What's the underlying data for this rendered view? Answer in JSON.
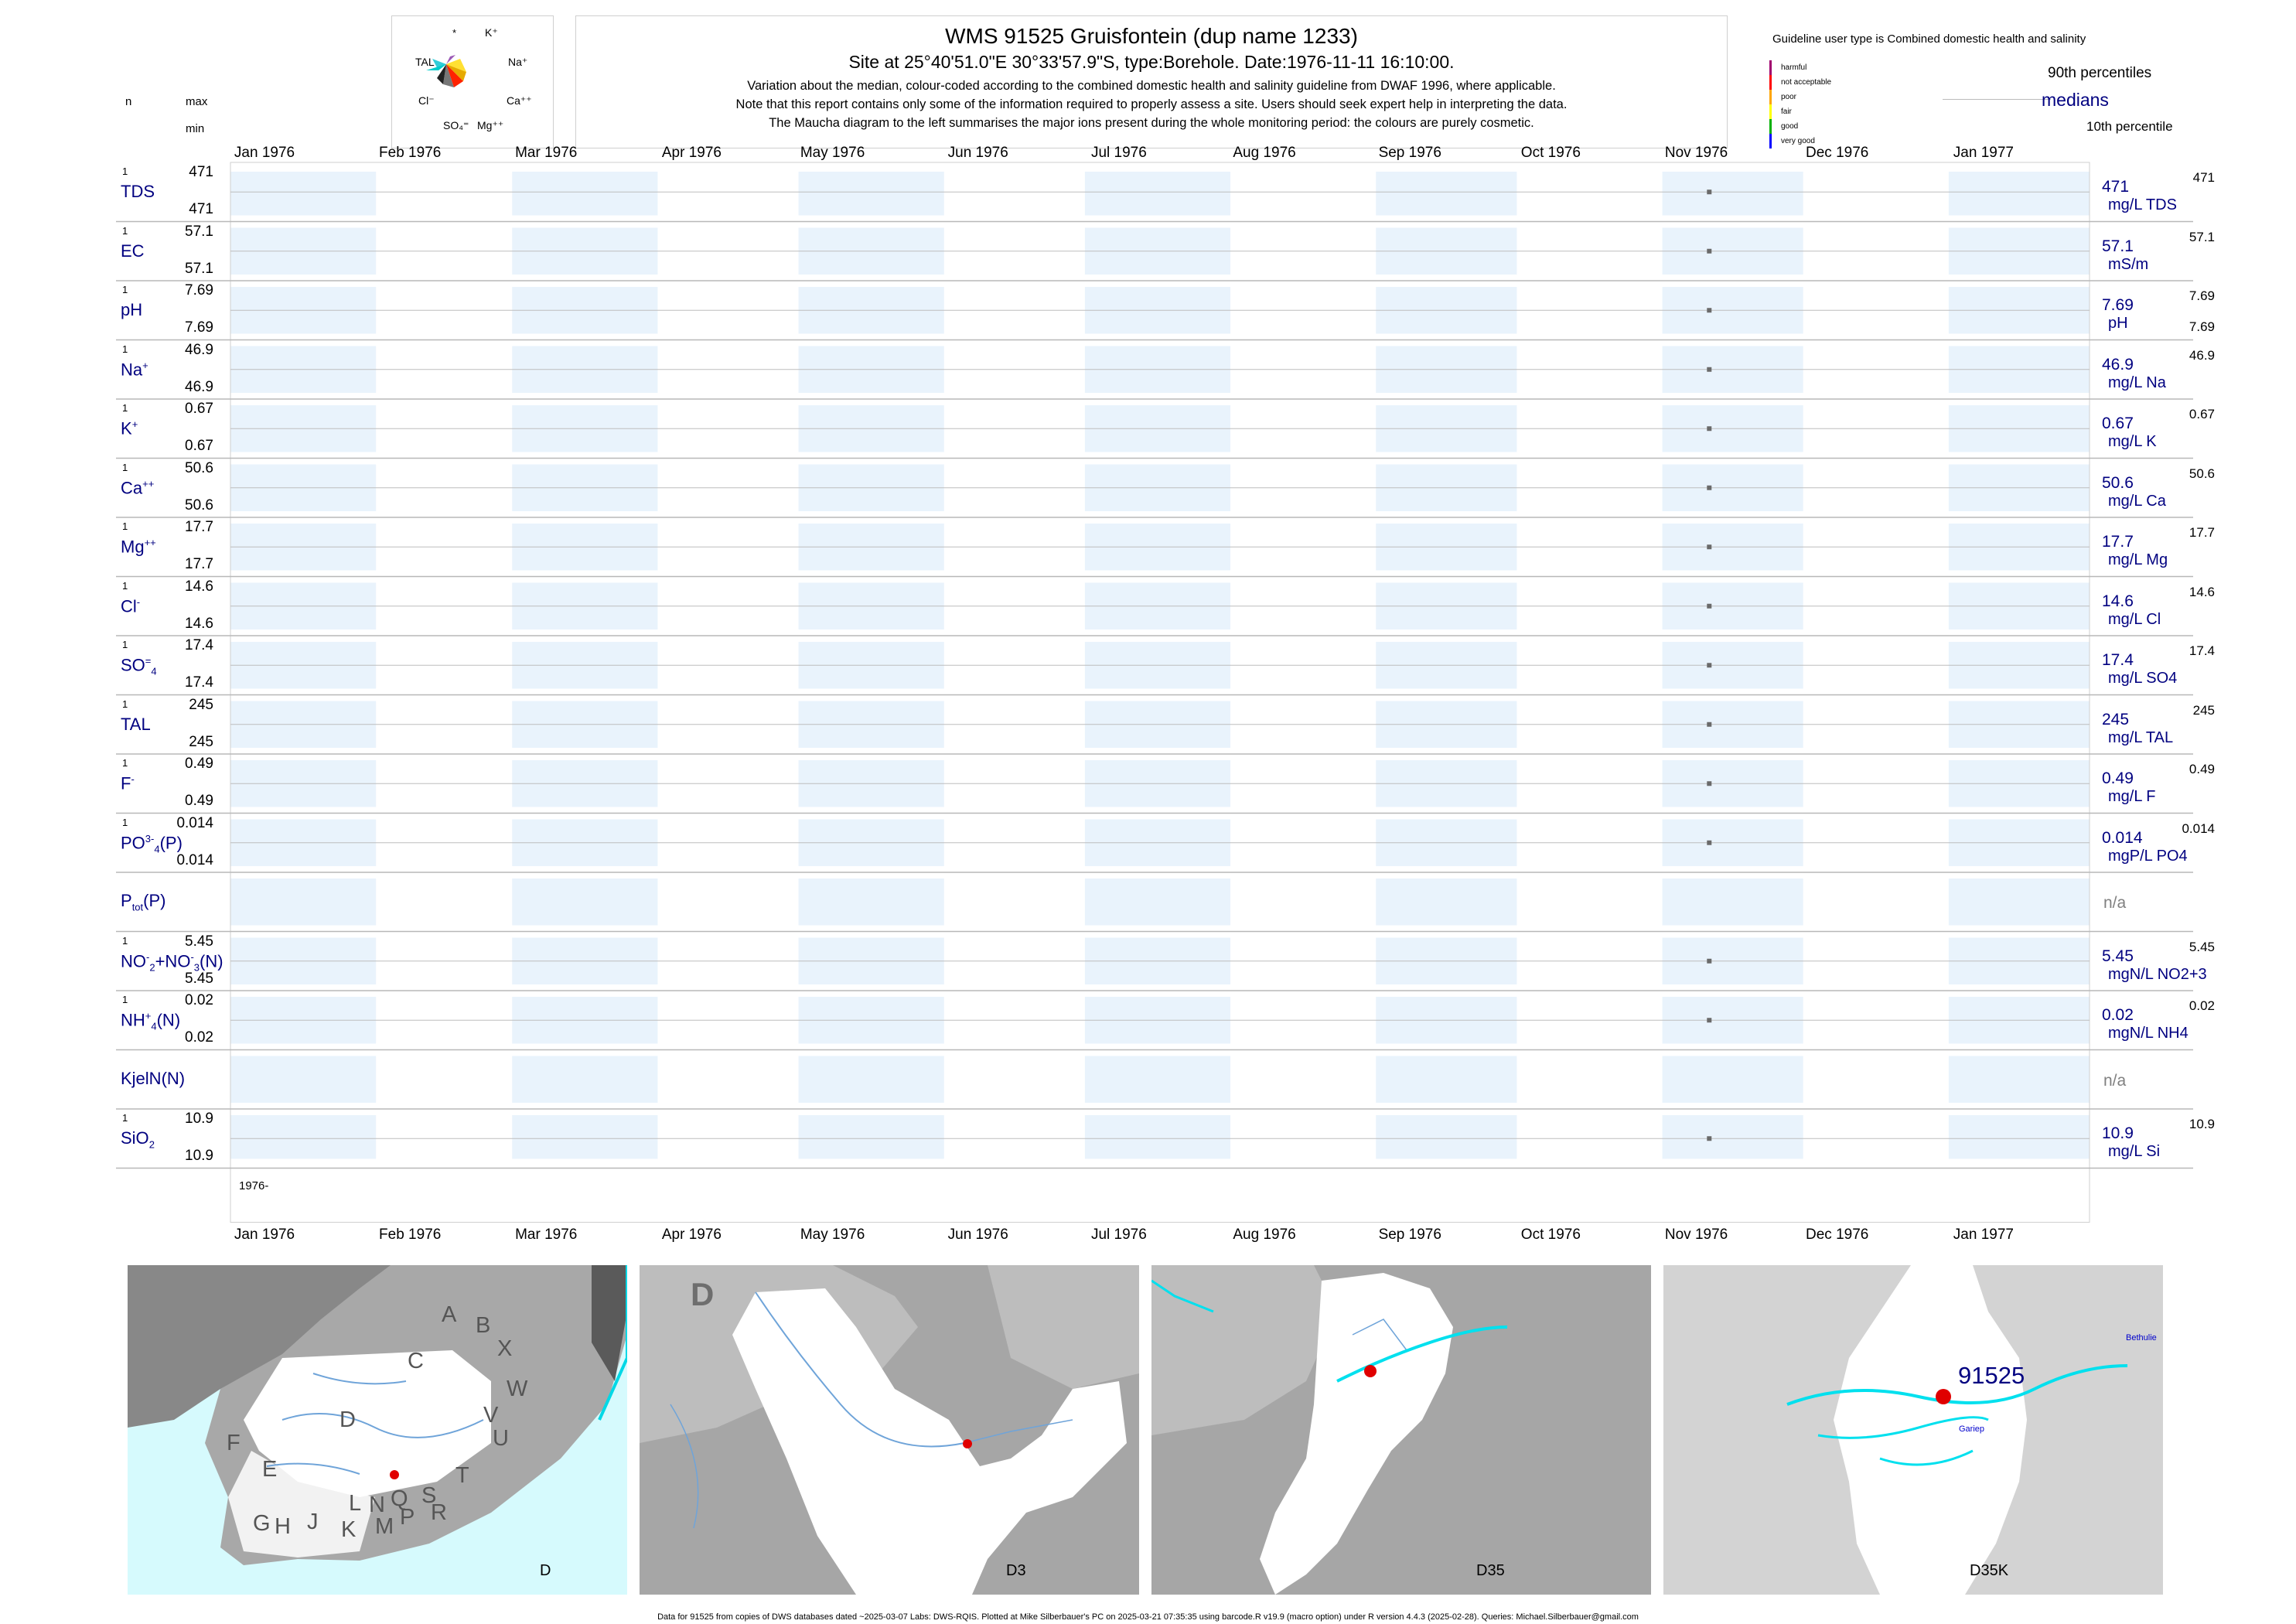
{
  "header": {
    "title": "WMS 91525  Gruisfontein (dup name 1233)",
    "subtitle": "Site at 25°40'51.0\"E 30°33'57.9\"S, type:Borehole. Date:1976-11-11 16:10:00.",
    "note_lines": [
      "Variation about the median,  colour-coded according to the combined domestic health and salinity guideline from DWAF 1996, where applicable.",
      "Note that this report contains only some of the information required to properly assess a site. Users should seek expert help in interpreting the data.",
      "The Maucha diagram to the left summarises the major ions present during the whole monitoring period: the colours are purely cosmetic."
    ],
    "col_n": "n",
    "col_max": "max",
    "col_min": "min"
  },
  "maucha": {
    "labels": [
      "*",
      "K⁺",
      "TAL",
      "Na⁺",
      "Cl⁻",
      "Ca⁺⁺",
      "SO₄⁼",
      "Mg⁺⁺"
    ]
  },
  "legend": {
    "guideline_text": "Guideline user type is Combined domestic health and salinity",
    "categories": [
      {
        "label": "harmful",
        "color": "#a0006e"
      },
      {
        "label": "not acceptable",
        "color": "#ff0000"
      },
      {
        "label": "poor",
        "color": "#ffa500"
      },
      {
        "label": "fair",
        "color": "#ffff00"
      },
      {
        "label": "good",
        "color": "#00b000"
      },
      {
        "label": "very good",
        "color": "#0000ff"
      }
    ],
    "p90": "90th percentiles",
    "medians": "medians",
    "p10": "10th percentile"
  },
  "chart_data": {
    "type": "scatter",
    "x_axis": {
      "range": [
        "1976-01-01",
        "1977-01-31"
      ],
      "tick_labels": [
        "Jan 1976",
        "Feb 1976",
        "Mar 1976",
        "Apr 1976",
        "May 1976",
        "Jun 1976",
        "Jul 1976",
        "Aug 1976",
        "Sep 1976",
        "Oct 1976",
        "Nov 1976",
        "Dec 1976",
        "Jan 1977"
      ],
      "bottom_year_label": "1976-"
    },
    "sample_date": "1976-11-11",
    "series": [
      {
        "name": "TDS",
        "sup": "",
        "sub": "",
        "n": "1",
        "max": "471",
        "min": "471",
        "median": "471",
        "unit": "mg/L TDS",
        "p90": "471",
        "p10": "",
        "value": 471
      },
      {
        "name": "EC",
        "sup": "",
        "sub": "",
        "n": "1",
        "max": "57.1",
        "min": "57.1",
        "median": "57.1",
        "unit": "mS/m",
        "p90": "57.1",
        "p10": "",
        "value": 57.1
      },
      {
        "name": "pH",
        "sup": "",
        "sub": "",
        "n": "1",
        "max": "7.69",
        "min": "7.69",
        "median": "7.69",
        "unit": "pH",
        "p90": "7.69",
        "p10": "7.69",
        "value": 7.69
      },
      {
        "name": "Na",
        "sup": "+",
        "sub": "",
        "n": "1",
        "max": "46.9",
        "min": "46.9",
        "median": "46.9",
        "unit": "mg/L Na",
        "p90": "46.9",
        "p10": "",
        "value": 46.9
      },
      {
        "name": "K",
        "sup": "+",
        "sub": "",
        "n": "1",
        "max": "0.67",
        "min": "0.67",
        "median": "0.67",
        "unit": "mg/L K",
        "p90": "0.67",
        "p10": "",
        "value": 0.67
      },
      {
        "name": "Ca",
        "sup": "++",
        "sub": "",
        "n": "1",
        "max": "50.6",
        "min": "50.6",
        "median": "50.6",
        "unit": "mg/L Ca",
        "p90": "50.6",
        "p10": "",
        "value": 50.6
      },
      {
        "name": "Mg",
        "sup": "++",
        "sub": "",
        "n": "1",
        "max": "17.7",
        "min": "17.7",
        "median": "17.7",
        "unit": "mg/L Mg",
        "p90": "17.7",
        "p10": "",
        "value": 17.7
      },
      {
        "name": "Cl",
        "sup": "-",
        "sub": "",
        "n": "1",
        "max": "14.6",
        "min": "14.6",
        "median": "14.6",
        "unit": "mg/L Cl",
        "p90": "14.6",
        "p10": "",
        "value": 14.6
      },
      {
        "name": "SO",
        "sup": "=",
        "sub": "4",
        "n": "1",
        "max": "17.4",
        "min": "17.4",
        "median": "17.4",
        "unit": "mg/L SO4",
        "p90": "17.4",
        "p10": "",
        "value": 17.4
      },
      {
        "name": "TAL",
        "sup": "",
        "sub": "",
        "n": "1",
        "max": "245",
        "min": "245",
        "median": "245",
        "unit": "mg/L TAL",
        "p90": "245",
        "p10": "",
        "value": 245
      },
      {
        "name": "F",
        "sup": "-",
        "sub": "",
        "n": "1",
        "max": "0.49",
        "min": "0.49",
        "median": "0.49",
        "unit": "mg/L F",
        "p90": "0.49",
        "p10": "",
        "value": 0.49
      },
      {
        "name": "PO",
        "sup": "3-",
        "sub": "4",
        "suffix": "(P)",
        "n": "1",
        "max": "0.014",
        "min": "0.014",
        "median": "0.014",
        "unit": "mgP/L PO4",
        "p90": "0.014",
        "p10": "",
        "value": 0.014
      },
      {
        "name": "P",
        "sup": "",
        "sub": "tot",
        "suffix": "(P)",
        "n": "",
        "max": "",
        "min": "",
        "median": "n/a",
        "unit": "",
        "p90": "",
        "p10": "",
        "value": null
      },
      {
        "name": "NO",
        "sup": "-",
        "sub": "2",
        "suffix": "+NO",
        "sup2": "-",
        "sub2": "3",
        "suffix2": "(N)",
        "n": "1",
        "max": "5.45",
        "min": "5.45",
        "median": "5.45",
        "unit": "mgN/L NO2+3",
        "p90": "5.45",
        "p10": "",
        "value": 5.45
      },
      {
        "name": "NH",
        "sup": "+",
        "sub": "4",
        "suffix": "(N)",
        "n": "1",
        "max": "0.02",
        "min": "0.02",
        "median": "0.02",
        "unit": "mgN/L NH4",
        "p90": "0.02",
        "p10": "",
        "value": 0.02
      },
      {
        "name": "KjelN(N)",
        "sup": "",
        "sub": "",
        "n": "",
        "max": "",
        "min": "",
        "median": "n/a",
        "unit": "",
        "p90": "",
        "p10": "",
        "value": null
      },
      {
        "name": "SiO",
        "sup": "",
        "sub": "2",
        "n": "1",
        "max": "10.9",
        "min": "10.9",
        "median": "10.9",
        "unit": "mg/L Si",
        "p90": "10.9",
        "p10": "",
        "value": 10.9
      }
    ]
  },
  "maps": [
    {
      "label": "D",
      "region_letters": [
        "A",
        "B",
        "X",
        "C",
        "W",
        "V",
        "D",
        "U",
        "F",
        "T",
        "E",
        "S",
        "Q",
        "R",
        "L",
        "N",
        "G",
        "H",
        "J",
        "K",
        "M",
        "P"
      ]
    },
    {
      "label": "D3",
      "corner_letter": "D"
    },
    {
      "label": "D35"
    },
    {
      "label": "D35K",
      "site_id": "91525",
      "place_names": [
        "Bethulie",
        "Gariep"
      ]
    }
  ],
  "footer": "Data for 91525 from copies of DWS databases dated ~2025-03-07 Labs: DWS-RQIS. Plotted at Mike Silberbauer's PC on 2025-03-21 07:35:35 using barcode.R v19.9 (macro option) under R version 4.4.3 (2025-02-28). Queries: Michael.Silberbauer@gmail.com"
}
